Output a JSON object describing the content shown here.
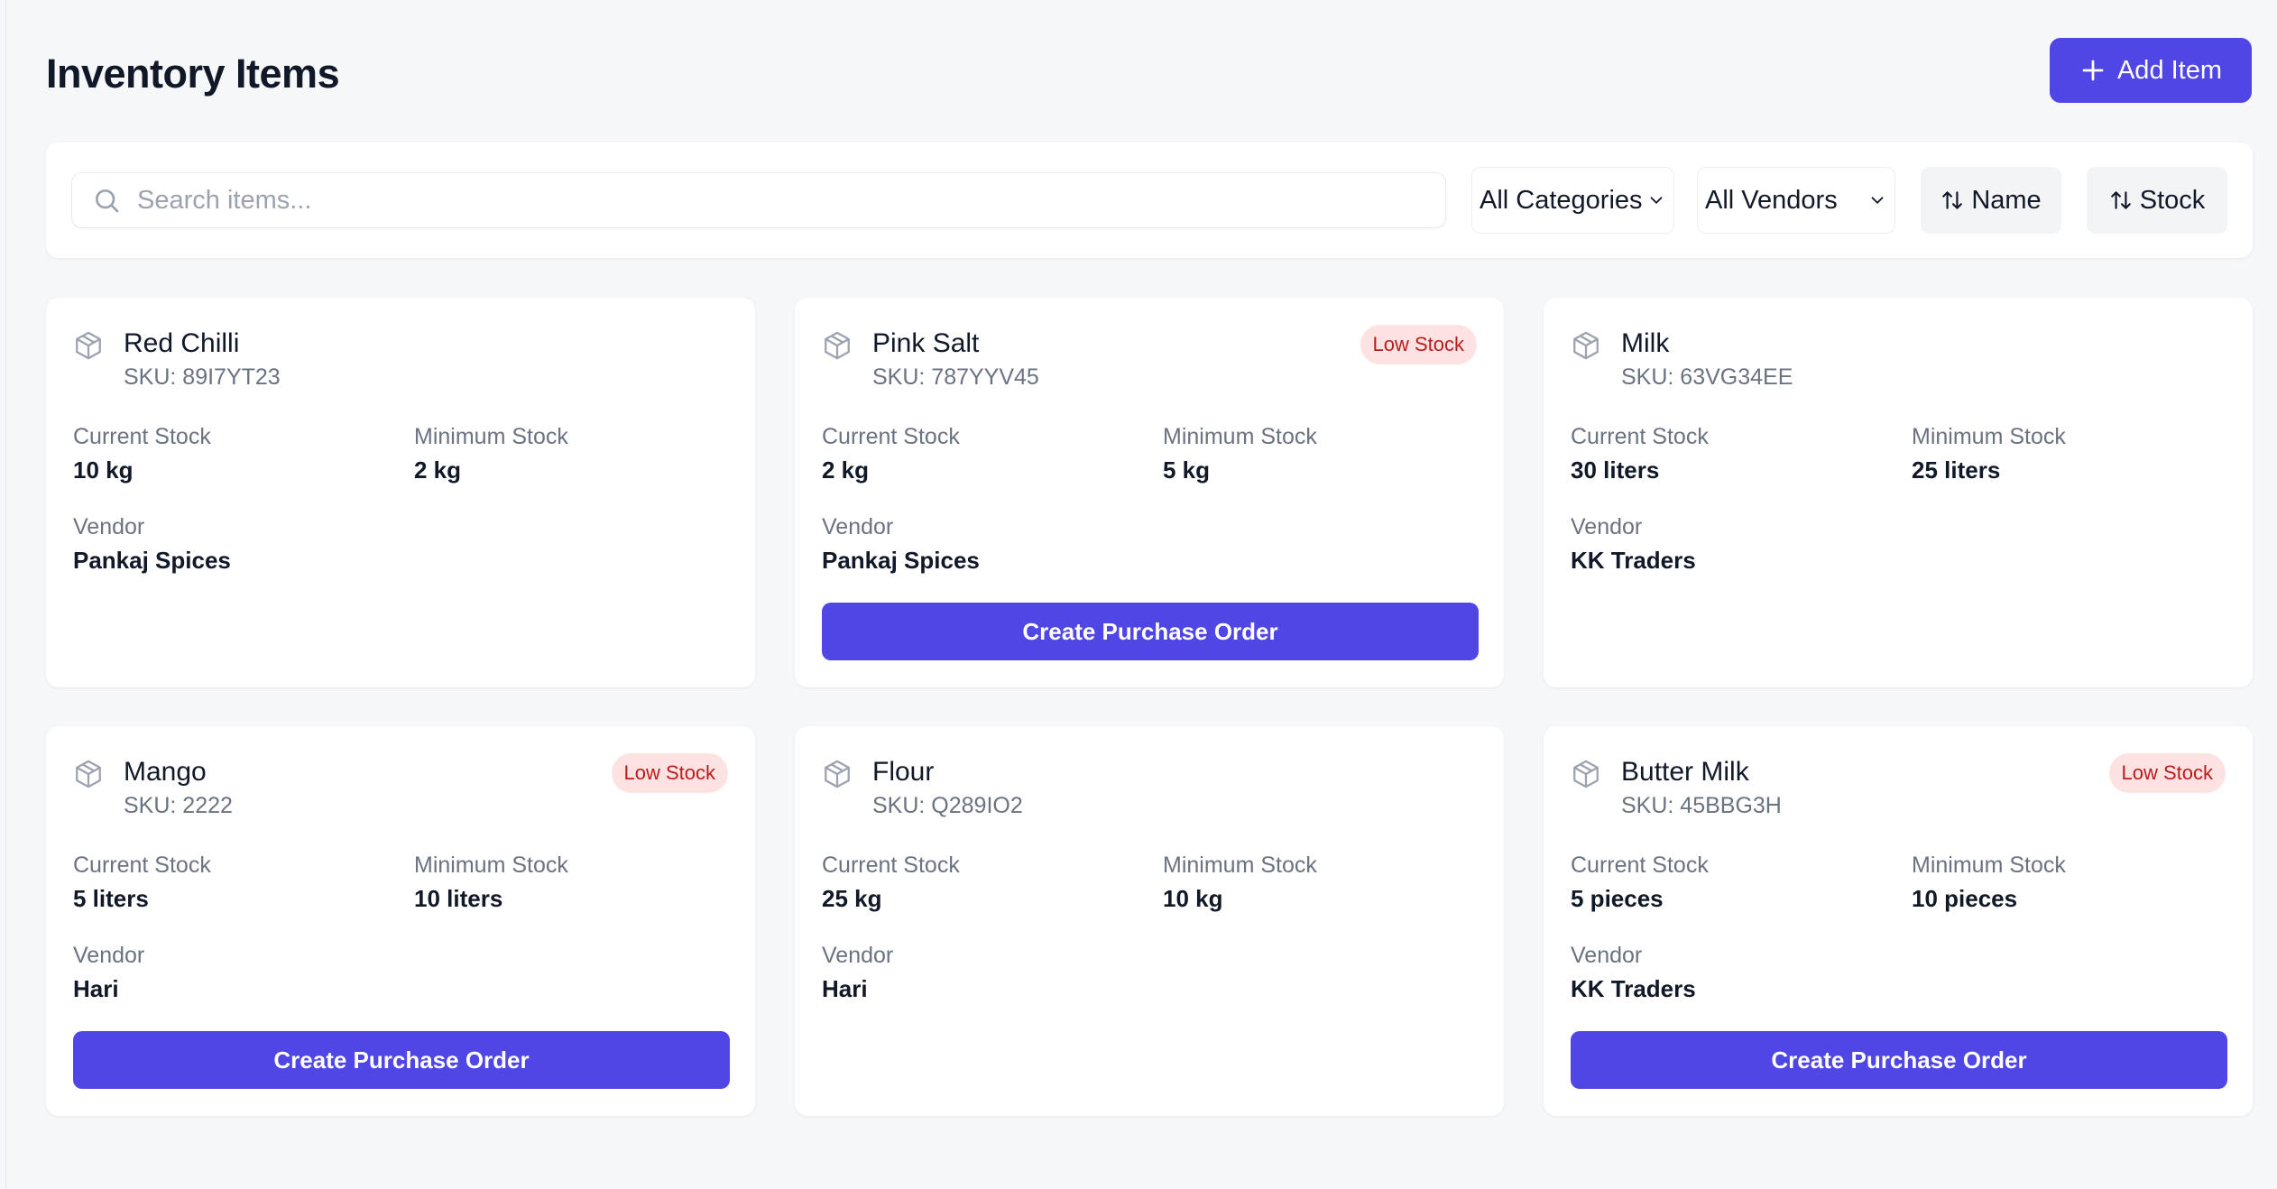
{
  "header": {
    "title": "Inventory Items",
    "add_label": "Add Item"
  },
  "filters": {
    "search_placeholder": "Search items...",
    "category": "All Categories",
    "vendor": "All Vendors",
    "sort_name": "Name",
    "sort_stock": "Stock"
  },
  "labels": {
    "current_stock": "Current Stock",
    "minimum_stock": "Minimum Stock",
    "vendor": "Vendor",
    "low_stock": "Low Stock",
    "create_po": "Create Purchase Order"
  },
  "items": [
    {
      "name": "Red Chilli",
      "sku": "SKU: 89I7YT23",
      "current": "10 kg",
      "minimum": "2 kg",
      "vendor": "Pankaj Spices",
      "low_stock": false
    },
    {
      "name": "Pink Salt",
      "sku": "SKU: 787YYV45",
      "current": "2 kg",
      "minimum": "5 kg",
      "vendor": "Pankaj Spices",
      "low_stock": true
    },
    {
      "name": "Milk",
      "sku": "SKU: 63VG34EE",
      "current": "30 liters",
      "minimum": "25 liters",
      "vendor": "KK Traders",
      "low_stock": false
    },
    {
      "name": "Mango",
      "sku": "SKU: 2222",
      "current": "5 liters",
      "minimum": "10 liters",
      "vendor": "Hari",
      "low_stock": true
    },
    {
      "name": "Flour",
      "sku": "SKU: Q289IO2",
      "current": "25 kg",
      "minimum": "10 kg",
      "vendor": "Hari",
      "low_stock": false
    },
    {
      "name": "Butter Milk",
      "sku": "SKU: 45BBG3H",
      "current": "5 pieces",
      "minimum": "10 pieces",
      "vendor": "KK Traders",
      "low_stock": true
    }
  ],
  "colors": {
    "primary": "#4f46e5",
    "badge_bg": "#fde2e2",
    "badge_text": "#b91c1c"
  }
}
